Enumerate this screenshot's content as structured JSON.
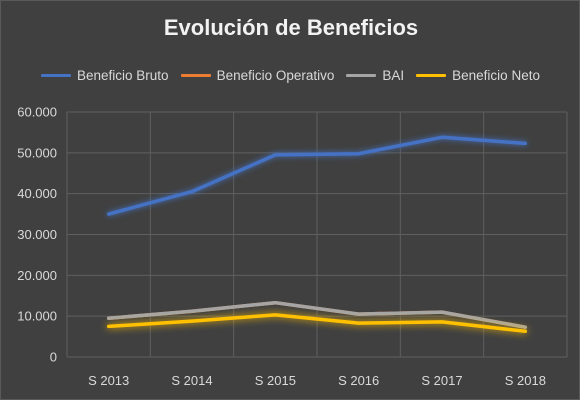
{
  "chart_data": {
    "type": "line",
    "title": "Evolución de Beneficios",
    "xlabel": "",
    "ylabel": "",
    "categories": [
      "S 2013",
      "S 2014",
      "S 2015",
      "S 2016",
      "S 2017",
      "S 2018"
    ],
    "ylim": [
      0,
      60000
    ],
    "yticks": [
      0,
      10000,
      20000,
      30000,
      40000,
      50000,
      60000
    ],
    "ytick_labels": [
      "0",
      "10.000",
      "20.000",
      "30.000",
      "40.000",
      "50.000",
      "60.000"
    ],
    "grid": true,
    "legend_position": "top",
    "series": [
      {
        "name": "Beneficio Bruto",
        "color": "#4472c4",
        "values": [
          35000,
          40500,
          49500,
          49800,
          53800,
          52300
        ]
      },
      {
        "name": "Beneficio Operativo",
        "color": "#ed7d31",
        "values": [
          9500,
          11200,
          13300,
          10500,
          11000,
          7300
        ]
      },
      {
        "name": "BAI",
        "color": "#a5a5a5",
        "values": [
          9500,
          11200,
          13300,
          10500,
          11000,
          7300
        ]
      },
      {
        "name": "Beneficio Neto",
        "color": "#ffc000",
        "values": [
          7500,
          8800,
          10300,
          8300,
          8600,
          6300
        ]
      }
    ]
  }
}
